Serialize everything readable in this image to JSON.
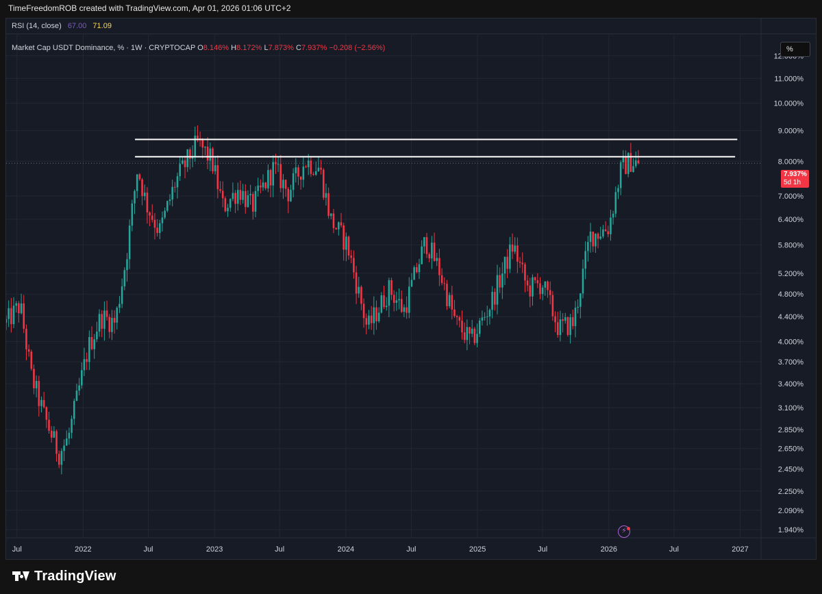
{
  "header": {
    "text": "TimeFreedomROB created with TradingView.com, Apr 01, 2026 01:06 UTC+2"
  },
  "indicator": {
    "name": "RSI (14, close)",
    "value1": "67.00",
    "value2": "71.09"
  },
  "legend": {
    "symbol": "Market Cap USDT Dominance, % · 1W · CRYPTOCAP",
    "open_label": "O",
    "open": "8.146%",
    "high_label": "H",
    "high": "8.172%",
    "low_label": "L",
    "low": "7.873%",
    "close_label": "C",
    "close": "7.937%",
    "change": "−0.208 (−2.56%)"
  },
  "scale_button": "%",
  "price_badge": {
    "value": "7.937%",
    "countdown": "5d 1h"
  },
  "colors": {
    "up": "#26a69a",
    "down": "#f23645",
    "background": "#171b26",
    "text": "#d1d4dc",
    "rsi_line": "#7e57c2",
    "rsi_value": "#f7d85a",
    "drawn_lines": "#ffffff"
  },
  "icons": {
    "flash": "lightning-icon",
    "logo": "tradingview-logo"
  },
  "footer": {
    "brand": "TradingView"
  },
  "chart_data": {
    "type": "candlestick",
    "title": "Market Cap USDT Dominance, % · 1W · CRYPTOCAP",
    "xlabel": "",
    "ylabel": "",
    "y_scale": "log",
    "y_ticks": [
      "12.000%",
      "11.000%",
      "10.000%",
      "9.000%",
      "8.000%",
      "7.000%",
      "6.400%",
      "5.800%",
      "5.200%",
      "4.800%",
      "4.400%",
      "4.000%",
      "3.700%",
      "3.400%",
      "3.100%",
      "2.850%",
      "2.650%",
      "2.450%",
      "2.250%",
      "2.090%",
      "1.940%"
    ],
    "y_tick_values": [
      12.0,
      11.0,
      10.0,
      9.0,
      8.0,
      7.0,
      6.4,
      5.8,
      5.2,
      4.8,
      4.4,
      4.0,
      3.7,
      3.4,
      3.1,
      2.85,
      2.65,
      2.45,
      2.25,
      2.09,
      1.94
    ],
    "x_ticks": [
      "Jul",
      "2022",
      "Jul",
      "2023",
      "Jul",
      "2024",
      "Jul",
      "2025",
      "Jul",
      "2026",
      "Jul",
      "2027"
    ],
    "x_tick_dates": [
      "2021-07-01",
      "2022-01-01",
      "2022-07-01",
      "2023-01-01",
      "2023-07-01",
      "2024-01-01",
      "2024-07-01",
      "2025-01-01",
      "2025-07-01",
      "2026-01-01",
      "2026-07-01",
      "2027-01-01"
    ],
    "x_range": [
      "2021-06-01",
      "2027-02-28"
    ],
    "ylim": [
      1.88,
      13.0
    ],
    "last_close": 7.937,
    "grid": true,
    "anchors": [
      {
        "date": "2021-06-01",
        "value": 4.3
      },
      {
        "date": "2021-07-10",
        "value": 4.6
      },
      {
        "date": "2021-08-10",
        "value": 3.5
      },
      {
        "date": "2021-09-15",
        "value": 3.0
      },
      {
        "date": "2021-10-25",
        "value": 2.6
      },
      {
        "date": "2021-11-20",
        "value": 2.75
      },
      {
        "date": "2022-01-15",
        "value": 3.9
      },
      {
        "date": "2022-02-20",
        "value": 4.4
      },
      {
        "date": "2022-03-31",
        "value": 4.3
      },
      {
        "date": "2022-04-30",
        "value": 5.5
      },
      {
        "date": "2022-06-01",
        "value": 7.8
      },
      {
        "date": "2022-06-25",
        "value": 6.8
      },
      {
        "date": "2022-08-01",
        "value": 6.1
      },
      {
        "date": "2022-09-15",
        "value": 7.4
      },
      {
        "date": "2022-11-15",
        "value": 8.6
      },
      {
        "date": "2022-12-25",
        "value": 8.0
      },
      {
        "date": "2023-01-25",
        "value": 6.7
      },
      {
        "date": "2023-03-10",
        "value": 7.2
      },
      {
        "date": "2023-04-15",
        "value": 6.7
      },
      {
        "date": "2023-06-15",
        "value": 7.8
      },
      {
        "date": "2023-07-25",
        "value": 7.1
      },
      {
        "date": "2023-09-10",
        "value": 8.0
      },
      {
        "date": "2023-10-20",
        "value": 7.8
      },
      {
        "date": "2023-11-20",
        "value": 6.4
      },
      {
        "date": "2024-01-05",
        "value": 5.8
      },
      {
        "date": "2024-03-01",
        "value": 4.2
      },
      {
        "date": "2024-05-01",
        "value": 4.9
      },
      {
        "date": "2024-06-10",
        "value": 4.5
      },
      {
        "date": "2024-08-10",
        "value": 5.9
      },
      {
        "date": "2024-09-15",
        "value": 5.3
      },
      {
        "date": "2024-11-01",
        "value": 4.3
      },
      {
        "date": "2024-12-15",
        "value": 4.0
      },
      {
        "date": "2025-02-05",
        "value": 4.6
      },
      {
        "date": "2025-04-10",
        "value": 5.8
      },
      {
        "date": "2025-05-20",
        "value": 4.9
      },
      {
        "date": "2025-06-30",
        "value": 5.0
      },
      {
        "date": "2025-08-15",
        "value": 4.2
      },
      {
        "date": "2025-09-25",
        "value": 4.3
      },
      {
        "date": "2025-11-10",
        "value": 6.0
      },
      {
        "date": "2025-12-31",
        "value": 6.2
      },
      {
        "date": "2026-02-05",
        "value": 7.8
      },
      {
        "date": "2026-03-01",
        "value": 8.0
      },
      {
        "date": "2026-03-29",
        "value": 7.937
      }
    ],
    "drawn_lines": [
      {
        "start_date": "2022-05-25",
        "start_value": 8.7,
        "end_date": "2026-12-24",
        "end_value": 8.7
      },
      {
        "start_date": "2022-05-25",
        "start_value": 8.14,
        "end_date": "2026-12-18",
        "end_value": 8.14
      }
    ]
  }
}
